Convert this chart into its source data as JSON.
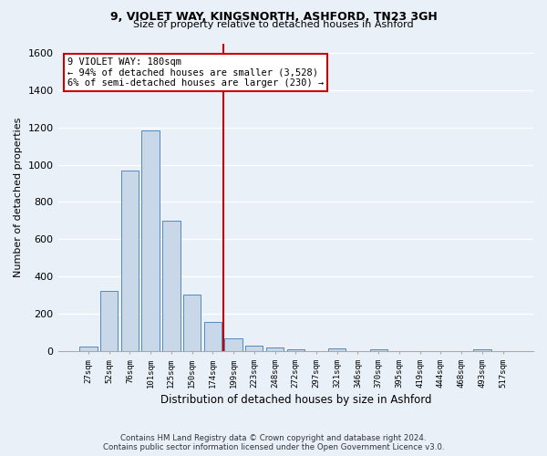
{
  "title1": "9, VIOLET WAY, KINGSNORTH, ASHFORD, TN23 3GH",
  "title2": "Size of property relative to detached houses in Ashford",
  "xlabel": "Distribution of detached houses by size in Ashford",
  "ylabel": "Number of detached properties",
  "footer1": "Contains HM Land Registry data © Crown copyright and database right 2024.",
  "footer2": "Contains public sector information licensed under the Open Government Licence v3.0.",
  "annotation_line1": "9 VIOLET WAY: 180sqm",
  "annotation_line2": "← 94% of detached houses are smaller (3,528)",
  "annotation_line3": "6% of semi-detached houses are larger (230) →",
  "bar_color": "#c8d8e8",
  "bar_edge_color": "#5588bb",
  "vline_color": "#cc0000",
  "categories": [
    "27sqm",
    "52sqm",
    "76sqm",
    "101sqm",
    "125sqm",
    "150sqm",
    "174sqm",
    "199sqm",
    "223sqm",
    "248sqm",
    "272sqm",
    "297sqm",
    "321sqm",
    "346sqm",
    "370sqm",
    "395sqm",
    "419sqm",
    "444sqm",
    "468sqm",
    "493sqm",
    "517sqm"
  ],
  "values": [
    25,
    325,
    970,
    1185,
    700,
    305,
    155,
    70,
    30,
    20,
    10,
    0,
    15,
    0,
    10,
    0,
    0,
    0,
    0,
    10,
    0
  ],
  "ylim": [
    0,
    1650
  ],
  "yticks": [
    0,
    200,
    400,
    600,
    800,
    1000,
    1200,
    1400,
    1600
  ],
  "bg_color": "#eaf0f8",
  "plot_bg_color": "#eaf0f8",
  "grid_color": "#ffffff"
}
